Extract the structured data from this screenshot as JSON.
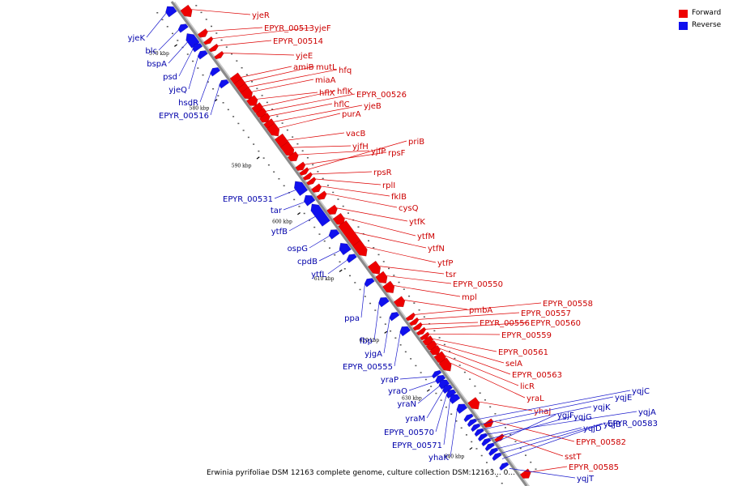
{
  "legend": {
    "forward_label": "Forward",
    "reverse_label": "Reverse",
    "forward_color": "#ee0000",
    "reverse_color": "#1010ee"
  },
  "caption": "Erwinia pyrifoliae DSM 12163 complete genome, culture collection DSM:12163... 0...",
  "axis": {
    "ticks": [
      {
        "label": "570 kbp",
        "pos": 570
      },
      {
        "label": "580 kbp",
        "pos": 580
      },
      {
        "label": "590 kbp",
        "pos": 590
      },
      {
        "label": "600 kbp",
        "pos": 600
      },
      {
        "label": "610 kbp",
        "pos": 610
      },
      {
        "label": "620 kbp",
        "pos": 620
      },
      {
        "label": "630 kbp",
        "pos": 630
      },
      {
        "label": "640 kbp",
        "pos": 640
      }
    ]
  },
  "genes": {
    "forward": [
      "yjeR",
      "EPYR_00513",
      "yjeF",
      "EPYR_00514",
      "yjeE",
      "amiB",
      "mutL",
      "hfq",
      "miaA",
      "hflX",
      "hflK",
      "EPYR_00526",
      "hflC",
      "yjeB",
      "purA",
      "vacB",
      "yjfH",
      "yjfP",
      "rpsF",
      "priB",
      "rpsR",
      "rplI",
      "fklB",
      "cysQ",
      "ytfK",
      "ytfM",
      "ytfN",
      "ytfP",
      "tsr",
      "EPYR_00550",
      "mpl",
      "pmbA",
      "EPYR_00558",
      "EPYR_00557",
      "EPYR_00556",
      "EPYR_00560",
      "EPYR_00559",
      "EPYR_00561",
      "selA",
      "EPYR_00563",
      "licR",
      "yraL",
      "yhaJ",
      "EPYR_00582",
      "sstT",
      "EPYR_00585"
    ],
    "reverse": [
      "yjeK",
      "blc",
      "bspA",
      "psd",
      "yjeQ",
      "hsdR",
      "EPYR_00516",
      "EPYR_00531",
      "tar",
      "ytfB",
      "ospG",
      "cpdB",
      "ytfL",
      "ppa",
      "fbp",
      "yjgA",
      "EPYR_00555",
      "yraP",
      "yraO",
      "yraN",
      "yraM",
      "EPYR_00570",
      "EPYR_00571",
      "yhaK",
      "yqjC",
      "yqjE",
      "yqjK",
      "yqjA",
      "yqjG",
      "ygjF",
      "yqjD",
      "yqjB",
      "EPYR_00583",
      "yqjT"
    ]
  }
}
